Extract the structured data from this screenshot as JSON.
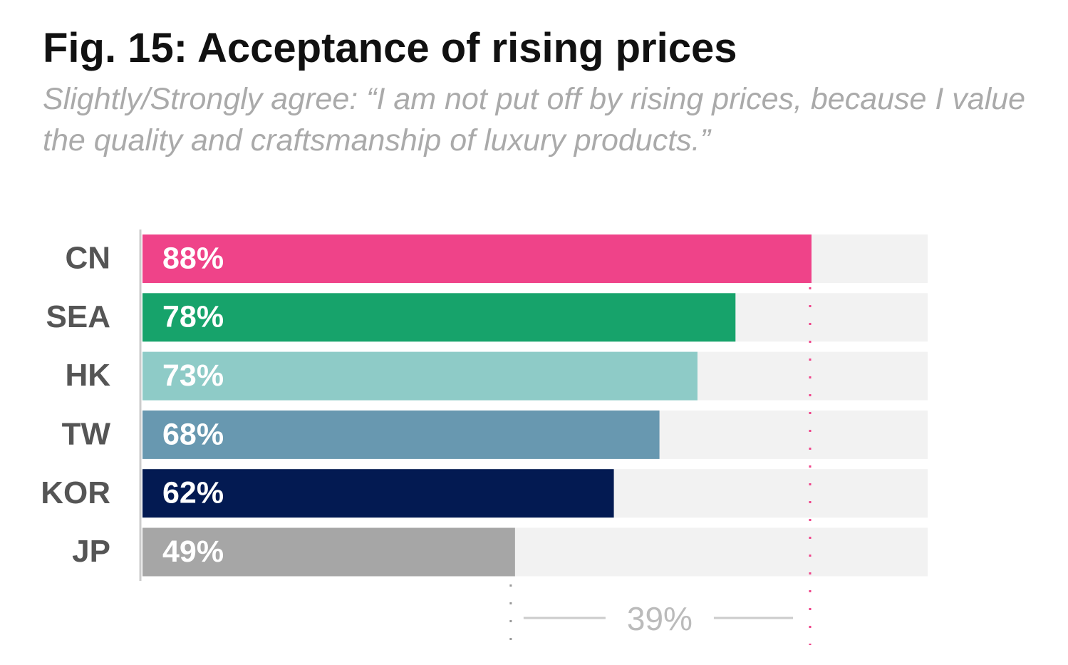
{
  "chart_data": {
    "type": "bar",
    "orientation": "horizontal",
    "title": "Fig. 15: Acceptance of rising prices",
    "subtitle": "Slightly/Strongly agree: “I am not put off by rising prices, because I value the quality and craftsmanship of luxury products.”",
    "categories": [
      "CN",
      "SEA",
      "HK",
      "TW",
      "KOR",
      "JP"
    ],
    "values": [
      88,
      78,
      73,
      68,
      62,
      49
    ],
    "value_labels": [
      "88%",
      "78%",
      "73%",
      "68%",
      "62%",
      "49%"
    ],
    "colors": [
      "#ef4389",
      "#17a36b",
      "#8ecbc7",
      "#6898b0",
      "#031a52",
      "#a6a6a6"
    ],
    "annotation": "39%"
  }
}
